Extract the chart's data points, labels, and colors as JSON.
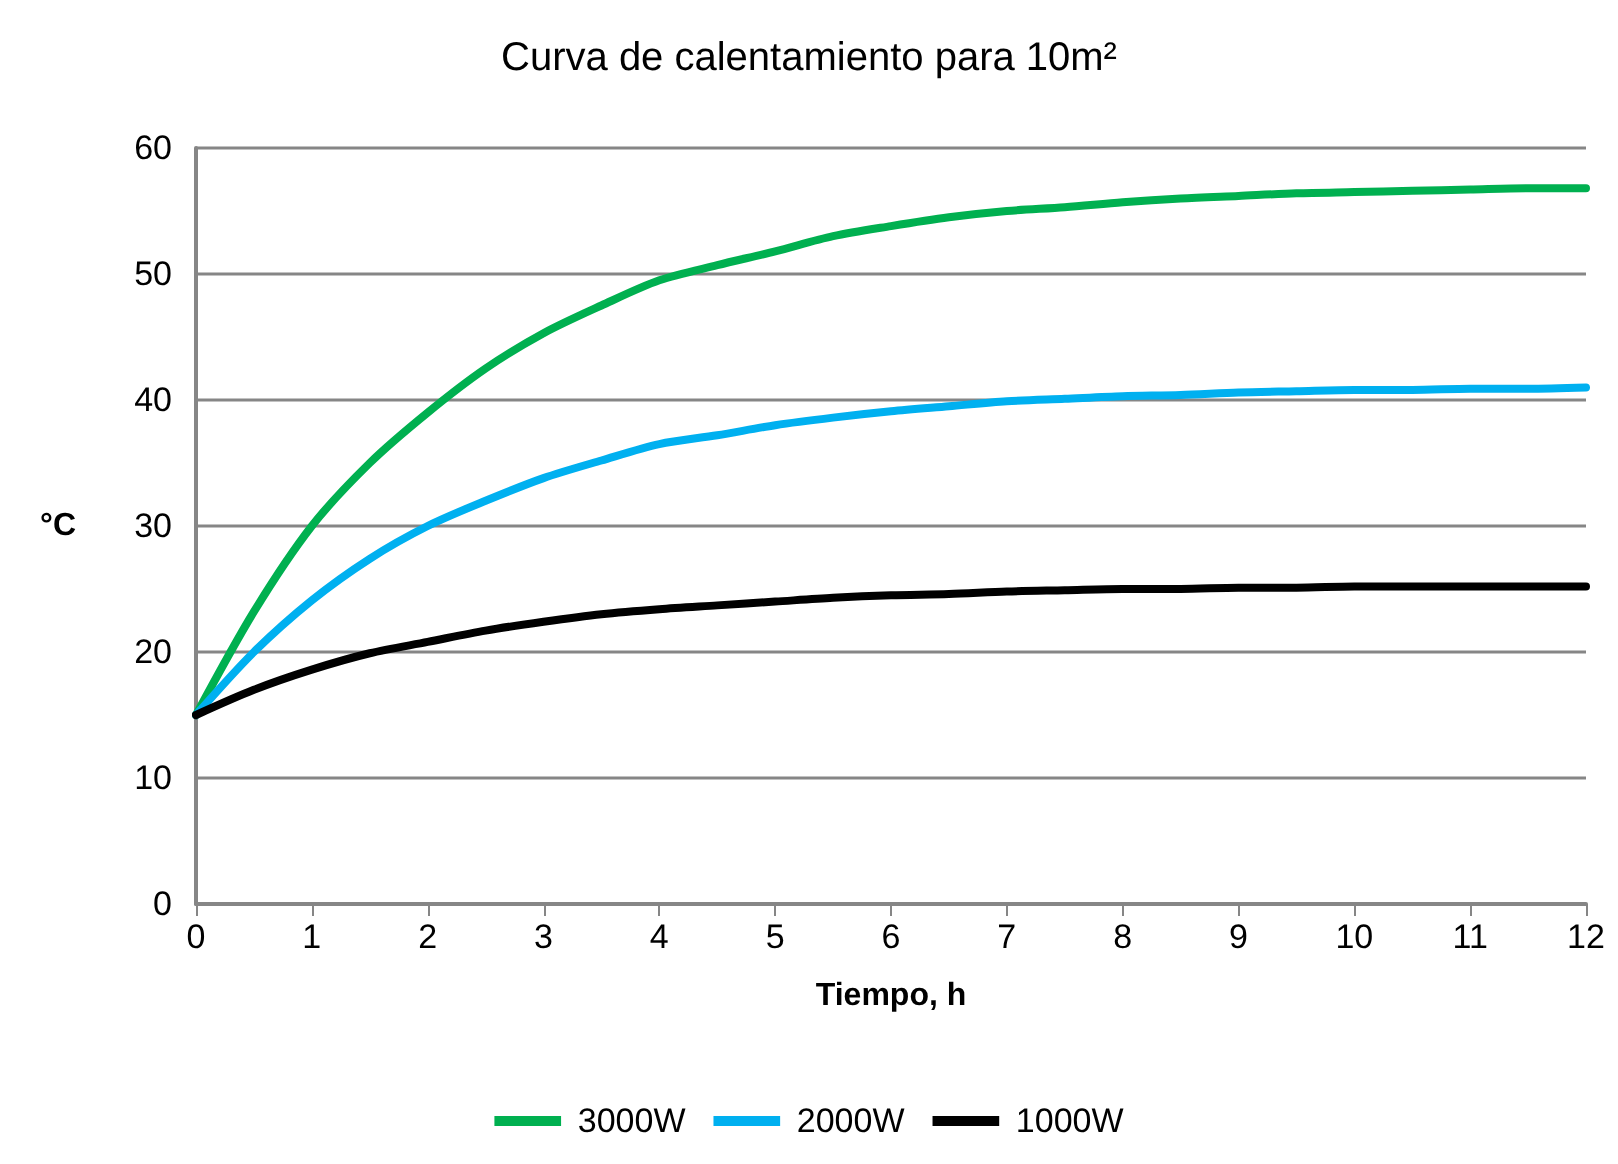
{
  "chart_data": {
    "type": "line",
    "title": "Curva de calentamiento para 10m²",
    "xlabel": "Tiempo, h",
    "ylabel": "°C",
    "x": [
      0,
      0.5,
      1,
      1.5,
      2,
      2.5,
      3,
      3.5,
      4,
      4.5,
      5,
      5.5,
      6,
      6.5,
      7,
      7.5,
      8,
      8.5,
      9,
      9.5,
      10,
      10.5,
      11,
      11.5,
      12
    ],
    "series": [
      {
        "name": "3000W",
        "color": "#00b050",
        "values": [
          15,
          23.2,
          30,
          35,
          39,
          42.5,
          45.3,
          47.5,
          49.5,
          50.7,
          51.8,
          53,
          53.8,
          54.5,
          55,
          55.3,
          55.7,
          56,
          56.2,
          56.4,
          56.5,
          56.6,
          56.7,
          56.8,
          56.8
        ]
      },
      {
        "name": "2000W",
        "color": "#00b0f0",
        "values": [
          15,
          20,
          24.1,
          27.4,
          30,
          32,
          33.8,
          35.2,
          36.5,
          37.2,
          38,
          38.6,
          39.1,
          39.5,
          39.9,
          40.1,
          40.3,
          40.4,
          40.6,
          40.7,
          40.8,
          40.8,
          40.9,
          40.9,
          41
        ]
      },
      {
        "name": "1000W",
        "color": "#000000",
        "values": [
          15,
          17,
          18.6,
          19.9,
          20.8,
          21.7,
          22.4,
          23,
          23.4,
          23.7,
          24,
          24.3,
          24.5,
          24.6,
          24.8,
          24.9,
          25,
          25,
          25.1,
          25.1,
          25.2,
          25.2,
          25.2,
          25.2,
          25.2
        ]
      }
    ],
    "xlim": [
      0,
      12
    ],
    "xticks": [
      0,
      1,
      2,
      3,
      4,
      5,
      6,
      7,
      8,
      9,
      10,
      11,
      12
    ],
    "ylim": [
      0,
      60
    ],
    "yticks": [
      0,
      10,
      20,
      30,
      40,
      50,
      60
    ],
    "grid": "y",
    "legend": "bottom",
    "marker": "none",
    "line_style": "solid"
  }
}
